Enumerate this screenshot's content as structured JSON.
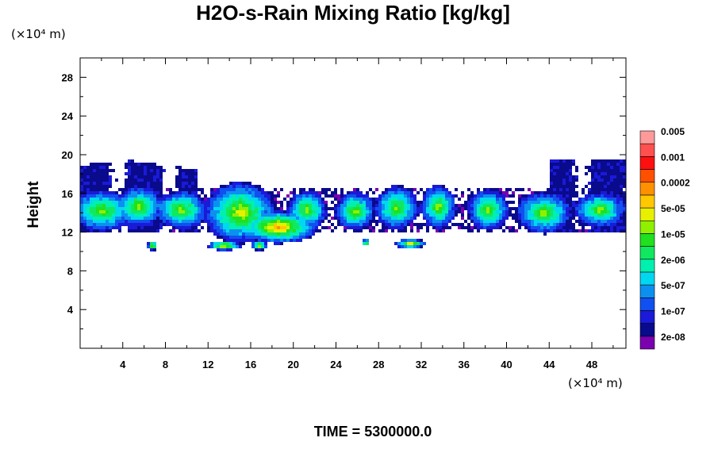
{
  "colors": {
    "palette": [
      "#7a00b0",
      "#0a0a8c",
      "#1a1ad8",
      "#1050f0",
      "#0c90f0",
      "#00d8f0",
      "#00f0b0",
      "#10e860",
      "#20e020",
      "#90f000",
      "#e8f000",
      "#ffc800",
      "#ff9000",
      "#ff5000",
      "#ff1010",
      "#ff5050",
      "#ff9a9a"
    ]
  },
  "chart_data": {
    "type": "heatmap",
    "title": "H2O-s-Rain Mixing Ratio [kg/kg]",
    "ylabel": "Height",
    "xunit": "(×10⁴ m)",
    "yunit": "(×10⁴ m)",
    "footer": "TIME = 5300000.0",
    "xlim": [
      0,
      51.2
    ],
    "ylim": [
      0,
      30
    ],
    "xticks": [
      "4",
      "8",
      "12",
      "16",
      "20",
      "24",
      "28",
      "32",
      "36",
      "40",
      "44",
      "48"
    ],
    "yticks": [
      "4",
      "8",
      "12",
      "16",
      "20",
      "24",
      "28"
    ],
    "colorbar_labels": [
      "2e-08",
      "1e-07",
      "5e-07",
      "2e-06",
      "1e-05",
      "5e-05",
      "0.0002",
      "0.001",
      "0.005"
    ],
    "cloud_layer": {
      "base": 12,
      "top": 19.5
    },
    "blobs": [
      {
        "x": 2.0,
        "y": 14.2,
        "rx": 3.0,
        "ry": 2.2,
        "peak": 8
      },
      {
        "x": 5.5,
        "y": 14.6,
        "rx": 2.4,
        "ry": 2.1,
        "peak": 8
      },
      {
        "x": 9.5,
        "y": 14.3,
        "rx": 2.6,
        "ry": 2.0,
        "peak": 8
      },
      {
        "x": 15.0,
        "y": 14.0,
        "rx": 3.5,
        "ry": 3.2,
        "peak": 9
      },
      {
        "x": 18.6,
        "y": 12.5,
        "rx": 3.8,
        "ry": 1.7,
        "peak": 11
      },
      {
        "x": 21.3,
        "y": 14.3,
        "rx": 1.9,
        "ry": 2.0,
        "peak": 8
      },
      {
        "x": 25.8,
        "y": 14.2,
        "rx": 1.9,
        "ry": 2.0,
        "peak": 8
      },
      {
        "x": 29.7,
        "y": 14.5,
        "rx": 2.1,
        "ry": 2.3,
        "peak": 8
      },
      {
        "x": 33.6,
        "y": 14.6,
        "rx": 1.7,
        "ry": 2.3,
        "peak": 8
      },
      {
        "x": 38.3,
        "y": 14.3,
        "rx": 2.0,
        "ry": 2.2,
        "peak": 8
      },
      {
        "x": 43.5,
        "y": 14.0,
        "rx": 2.7,
        "ry": 2.2,
        "peak": 8
      },
      {
        "x": 48.8,
        "y": 14.3,
        "rx": 2.5,
        "ry": 1.8,
        "peak": 8
      },
      {
        "x": 6.8,
        "y": 10.6,
        "rx": 0.5,
        "ry": 0.5,
        "peak": 10
      },
      {
        "x": 13.5,
        "y": 10.6,
        "rx": 1.6,
        "ry": 0.5,
        "peak": 10
      },
      {
        "x": 16.8,
        "y": 10.6,
        "rx": 0.8,
        "ry": 0.5,
        "peak": 9
      },
      {
        "x": 26.8,
        "y": 10.9,
        "rx": 0.4,
        "ry": 0.4,
        "peak": 9
      },
      {
        "x": 31.0,
        "y": 10.8,
        "rx": 1.5,
        "ry": 0.5,
        "peak": 9
      }
    ]
  }
}
